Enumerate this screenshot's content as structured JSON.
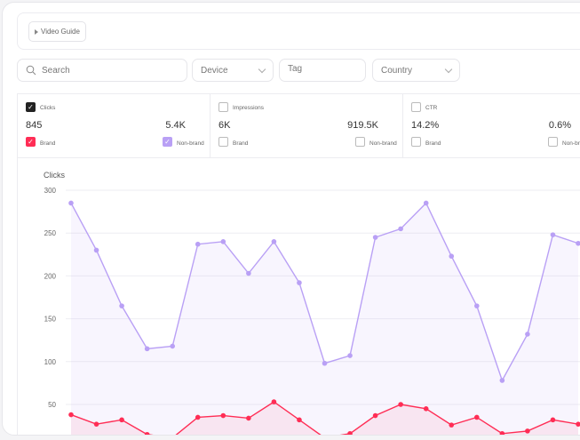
{
  "toolbar": {
    "video_guide": "Video Guide"
  },
  "filters": {
    "search_placeholder": "Search",
    "device": "Device",
    "tag": "Tag",
    "country": "Country"
  },
  "metrics": [
    {
      "title": "Clicks",
      "checked": true,
      "brand_value": "845",
      "nonbrand_value": "5.4K",
      "brand_label": "Brand",
      "nonbrand_label": "Non-brand",
      "brand_checked": true,
      "nonbrand_checked": true
    },
    {
      "title": "Impressions",
      "checked": false,
      "brand_value": "6K",
      "nonbrand_value": "919.5K",
      "brand_label": "Brand",
      "nonbrand_label": "Non-brand",
      "brand_checked": false,
      "nonbrand_checked": false
    },
    {
      "title": "CTR",
      "checked": false,
      "brand_value": "14.2%",
      "nonbrand_value": "0.6%",
      "brand_label": "Brand",
      "nonbrand_label": "Non-brand",
      "brand_checked": false,
      "nonbrand_checked": false
    }
  ],
  "colors": {
    "brand": "#ff2d55",
    "nonbrand": "#b9a0f5",
    "clicks_check": "#222222"
  },
  "chart_data": {
    "type": "line",
    "ylabel": "Clicks",
    "ylim": [
      0,
      300
    ],
    "yticks": [
      "300",
      "250",
      "200",
      "150",
      "100",
      "50"
    ],
    "grid": true,
    "series": [
      {
        "key": "nonbrand",
        "values": [
          285,
          230,
          165,
          115,
          118,
          237,
          240,
          203,
          240,
          192,
          98,
          107,
          245,
          255,
          285,
          223,
          165,
          78,
          132,
          248,
          238
        ]
      },
      {
        "key": "brand",
        "values": [
          38,
          27,
          32,
          15,
          11,
          35,
          37,
          34,
          53,
          32,
          11,
          16,
          37,
          50,
          45,
          26,
          35,
          16,
          19,
          32,
          27
        ]
      }
    ]
  }
}
